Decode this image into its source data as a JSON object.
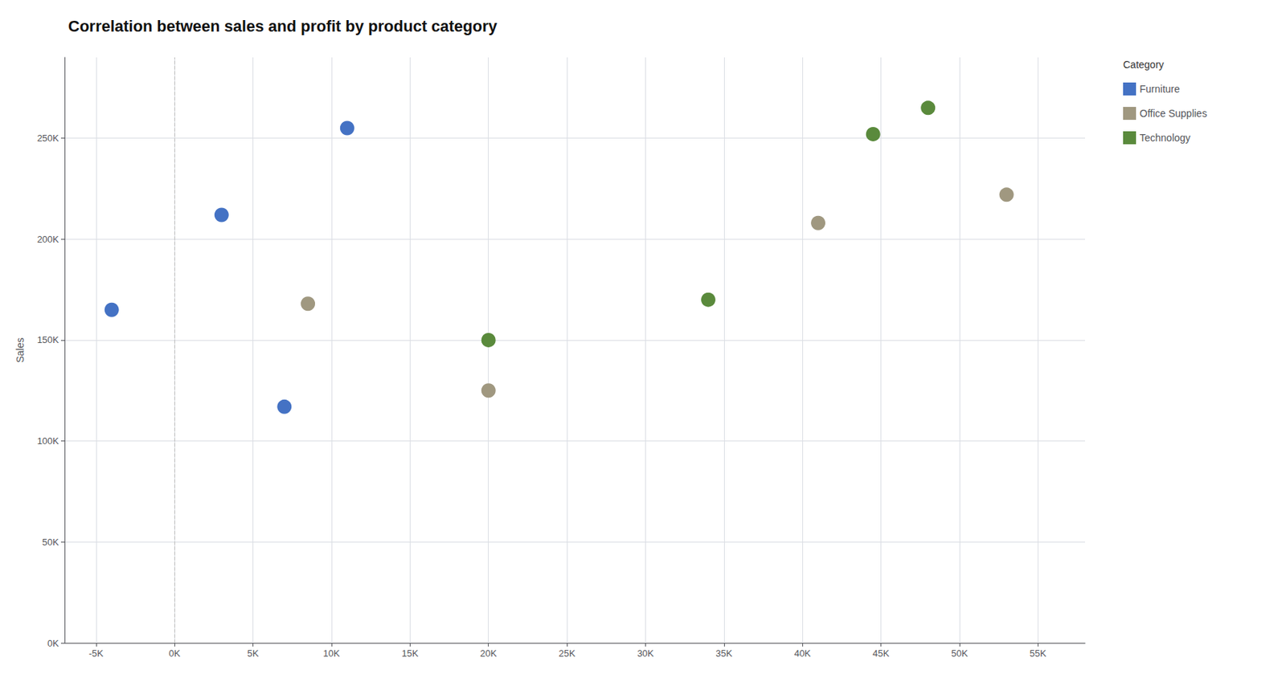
{
  "chart_data": {
    "type": "scatter",
    "title": "Correlation between sales and profit by product category",
    "ylabel": "Sales",
    "legend_title": "Category",
    "legend": "upper right",
    "grid": true,
    "marker": "circle",
    "series": [
      {
        "name": "Furniture",
        "color": "#4472C4",
        "x": [
          -4000,
          3000,
          7000,
          11000
        ],
        "values": [
          165000,
          212000,
          117000,
          255000
        ]
      },
      {
        "name": "Office Supplies",
        "color": "#A09880",
        "x": [
          8500,
          20000,
          41000,
          53000
        ],
        "values": [
          168000,
          125000,
          208000,
          222000
        ]
      },
      {
        "name": "Technology",
        "color": "#5A8A3C",
        "x": [
          20000,
          34000,
          44500,
          48000
        ],
        "values": [
          150000,
          170000,
          252000,
          265000
        ]
      }
    ],
    "xlim": [
      -7000,
      58000
    ],
    "ylim": [
      0,
      290000
    ],
    "xticks": [
      {
        "value": -5000,
        "label": "-5K"
      },
      {
        "value": 0,
        "label": "0K"
      },
      {
        "value": 5000,
        "label": "5K"
      },
      {
        "value": 10000,
        "label": "10K"
      },
      {
        "value": 15000,
        "label": "15K"
      },
      {
        "value": 20000,
        "label": "20K"
      },
      {
        "value": 25000,
        "label": "25K"
      },
      {
        "value": 30000,
        "label": "30K"
      },
      {
        "value": 35000,
        "label": "35K"
      },
      {
        "value": 40000,
        "label": "40K"
      },
      {
        "value": 45000,
        "label": "45K"
      },
      {
        "value": 50000,
        "label": "50K"
      },
      {
        "value": 55000,
        "label": "55K"
      }
    ],
    "yticks": [
      {
        "value": 0,
        "label": "0K"
      },
      {
        "value": 50000,
        "label": "50K"
      },
      {
        "value": 100000,
        "label": "100K"
      },
      {
        "value": 150000,
        "label": "150K"
      },
      {
        "value": 200000,
        "label": "200K"
      },
      {
        "value": 250000,
        "label": "250K"
      }
    ],
    "annotations": [
      {
        "x": 0,
        "line_style": "dashed"
      }
    ]
  }
}
